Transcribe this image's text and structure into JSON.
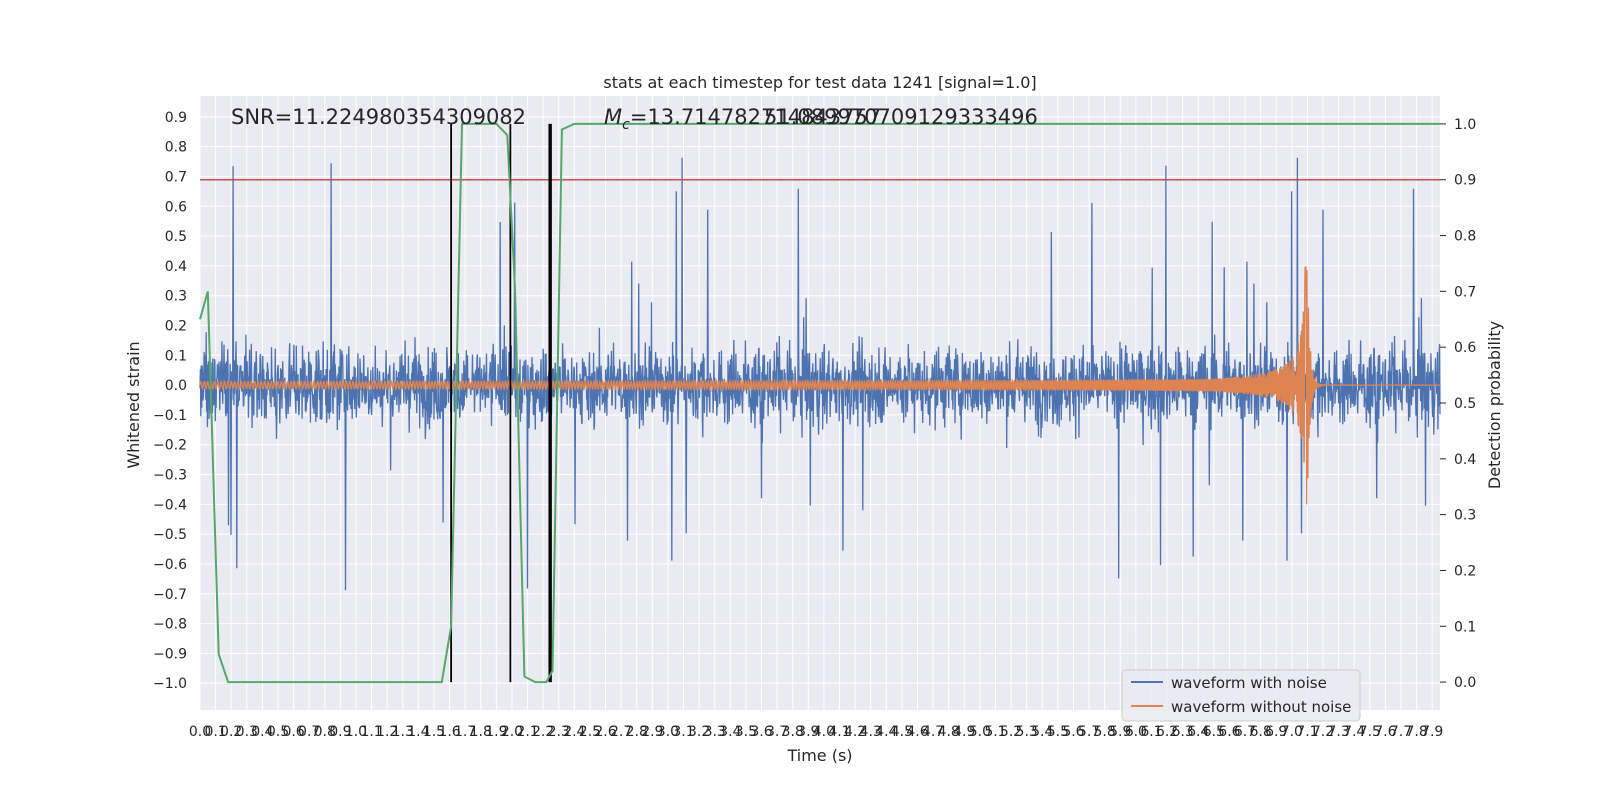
{
  "chart_data": {
    "type": "line",
    "title": "stats at each timestep for test data 1241 [signal=1.0]",
    "xlabel": "Time (s)",
    "ylabel_left": "Whitened strain",
    "ylabel_right": "Detection probability",
    "xlim": [
      0.0,
      7.95
    ],
    "ylim_left": [
      -1.09,
      0.97
    ],
    "ylim_right": [
      -0.05,
      1.05
    ],
    "x_ticks": [
      "0.0",
      "0.1",
      "0.2",
      "0.3",
      "0.4",
      "0.5",
      "0.6",
      "0.7",
      "0.8",
      "0.9",
      "1.0",
      "1.1",
      "1.2",
      "1.3",
      "1.4",
      "1.5",
      "1.6",
      "1.7",
      "1.8",
      "1.9",
      "2.0",
      "2.1",
      "2.2",
      "2.3",
      "2.4",
      "2.5",
      "2.6",
      "2.7",
      "2.8",
      "2.9",
      "3.0",
      "3.1",
      "3.2",
      "3.3",
      "3.4",
      "3.5",
      "3.6",
      "3.7",
      "3.8",
      "3.9",
      "4.0",
      "4.1",
      "4.2",
      "4.3",
      "4.4",
      "4.5",
      "4.6",
      "4.7",
      "4.8",
      "4.9",
      "5.0",
      "5.1",
      "5.2",
      "5.3",
      "5.4",
      "5.5",
      "5.6",
      "5.7",
      "5.8",
      "5.9",
      "6.0",
      "6.1",
      "6.2",
      "6.3",
      "6.4",
      "6.5",
      "6.6",
      "6.7",
      "6.8",
      "6.9",
      "7.0",
      "7.1",
      "7.2",
      "7.3",
      "7.4",
      "7.5",
      "7.6",
      "7.7",
      "7.8",
      "7.9"
    ],
    "y_ticks_left": [
      "0.9",
      "0.8",
      "0.7",
      "0.6",
      "0.5",
      "0.4",
      "0.3",
      "0.2",
      "0.1",
      "0.0",
      "−0.1",
      "−0.2",
      "−0.3",
      "−0.4",
      "−0.5",
      "−0.6",
      "−0.7",
      "−0.8",
      "−0.9",
      "−1.0"
    ],
    "y_ticks_right": [
      "1.0",
      "0.9",
      "0.8",
      "0.7",
      "0.6",
      "0.5",
      "0.4",
      "0.3",
      "0.2",
      "0.1",
      "0.0"
    ],
    "annotations": {
      "snr": "SNR=11.224980354309082",
      "mc_prefix": "M",
      "mc_sub": "c",
      "mc_value": "=13.714782714843757",
      "overlap": "51.089970709129333496"
    },
    "threshold": {
      "y": 0.9,
      "axis": "right",
      "color": "#c44e52"
    },
    "vertical_markers": [
      1.61,
      1.99,
      2.24,
      2.25
    ],
    "series": [
      {
        "name": "waveform with noise",
        "color": "#4c72b0",
        "axis": "left",
        "description": "dense noisy strain signal, amplitude mostly within ±0.45 with spikes up to ~0.9 and down to ~−1.0"
      },
      {
        "name": "waveform without noise",
        "color": "#dd8452",
        "axis": "left",
        "chirp_merger_time": 7.1,
        "chirp_peak_amplitude": 0.4
      },
      {
        "color": "#55a868",
        "axis": "right",
        "x": [
          0.0,
          0.05,
          0.12,
          0.18,
          1.55,
          1.61,
          1.68,
          1.9,
          1.97,
          2.02,
          2.08,
          2.15,
          2.22,
          2.26,
          2.32,
          2.4,
          7.95
        ],
        "y": [
          0.65,
          0.7,
          0.05,
          0.0,
          0.0,
          0.1,
          1.0,
          1.0,
          0.98,
          0.7,
          0.01,
          0.0,
          0.0,
          0.02,
          0.99,
          1.0,
          1.0
        ]
      }
    ],
    "legend": {
      "placement": "lower-right",
      "entries": [
        "waveform with noise",
        "waveform without noise"
      ]
    },
    "grid": true
  }
}
